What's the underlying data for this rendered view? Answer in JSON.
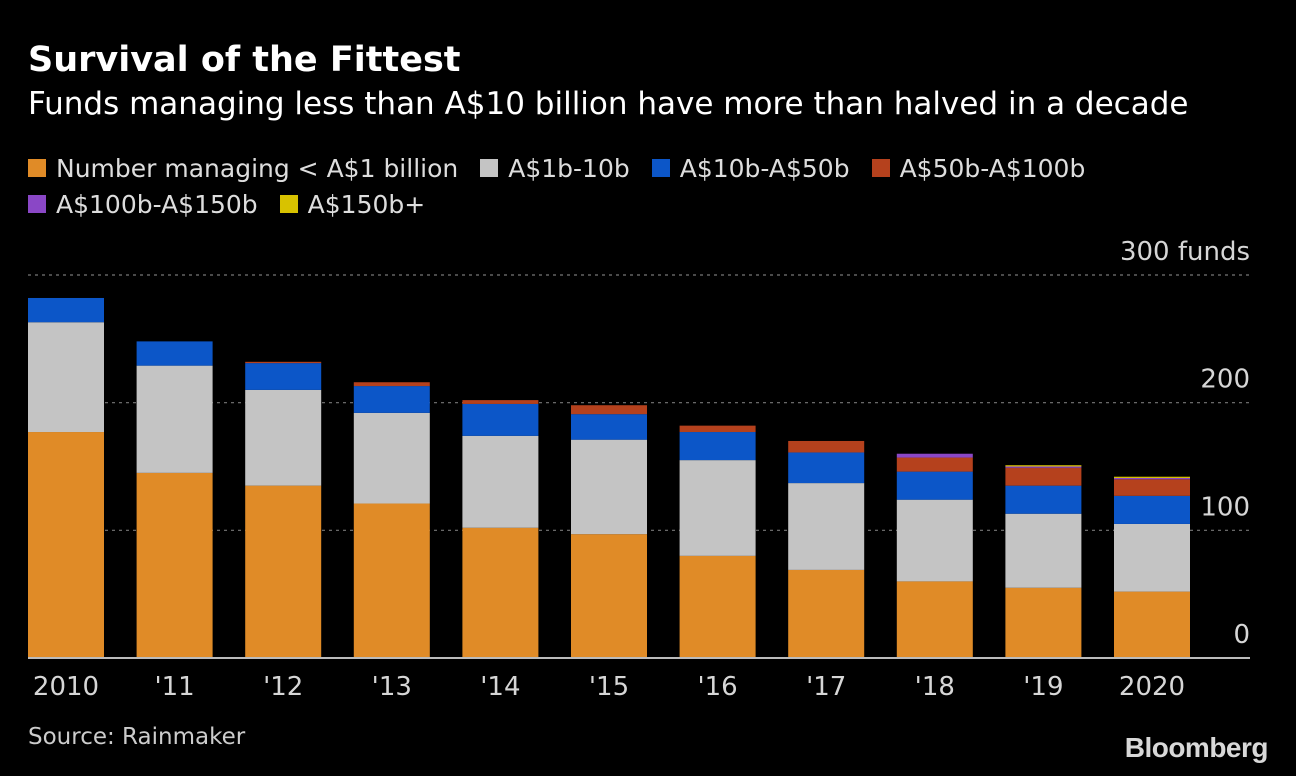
{
  "title": "Survival of the Fittest",
  "subtitle": "Funds managing less than A$10 billion have more than halved in a decade",
  "source": "Source: Rainmaker",
  "logo": "Bloomberg",
  "legend": {
    "rows": [
      [
        {
          "label": "Number managing < A$1 billion",
          "color": "#e08b27"
        },
        {
          "label": "A$1b-10b",
          "color": "#c4c4c4"
        },
        {
          "label": "A$10b-A$50b",
          "color": "#0c56c8"
        },
        {
          "label": "A$50b-A$100b",
          "color": "#b5411d"
        }
      ],
      [
        {
          "label": "A$100b-A$150b",
          "color": "#8a47c6"
        },
        {
          "label": "A$150b+",
          "color": "#d8c200"
        }
      ]
    ]
  },
  "chart_data": {
    "type": "bar",
    "stacked": true,
    "categories": [
      "2010",
      "'11",
      "'12",
      "'13",
      "'14",
      "'15",
      "'16",
      "'17",
      "'18",
      "'19",
      "2020"
    ],
    "series": [
      {
        "name": "Number managing < A$1 billion",
        "color": "#e08b27",
        "values": [
          177,
          145,
          135,
          121,
          102,
          97,
          80,
          69,
          60,
          55,
          52
        ]
      },
      {
        "name": "A$1b-10b",
        "color": "#c4c4c4",
        "values": [
          86,
          84,
          75,
          71,
          72,
          74,
          75,
          68,
          64,
          58,
          53
        ]
      },
      {
        "name": "A$10b-A$50b",
        "color": "#0c56c8",
        "values": [
          19,
          19,
          21,
          21,
          25,
          20,
          22,
          24,
          22,
          22,
          22
        ]
      },
      {
        "name": "A$50b-A$100b",
        "color": "#b5411d",
        "values": [
          0,
          0,
          1,
          3,
          3,
          7,
          5,
          9,
          11,
          14,
          13
        ]
      },
      {
        "name": "A$100b-A$150b",
        "color": "#8a47c6",
        "values": [
          0,
          0,
          0,
          0,
          0,
          0,
          0,
          0,
          3,
          1,
          1
        ]
      },
      {
        "name": "A$150b+",
        "color": "#d8c200",
        "values": [
          0,
          0,
          0,
          0,
          0,
          0,
          0,
          0,
          0,
          1,
          1
        ]
      }
    ],
    "ylim": [
      0,
      300
    ],
    "yticks": [
      {
        "value": 0,
        "label": "0"
      },
      {
        "value": 100,
        "label": "100"
      },
      {
        "value": 200,
        "label": "200"
      },
      {
        "value": 300,
        "label": "300 funds"
      }
    ],
    "grid": true,
    "legend_position": "top"
  }
}
